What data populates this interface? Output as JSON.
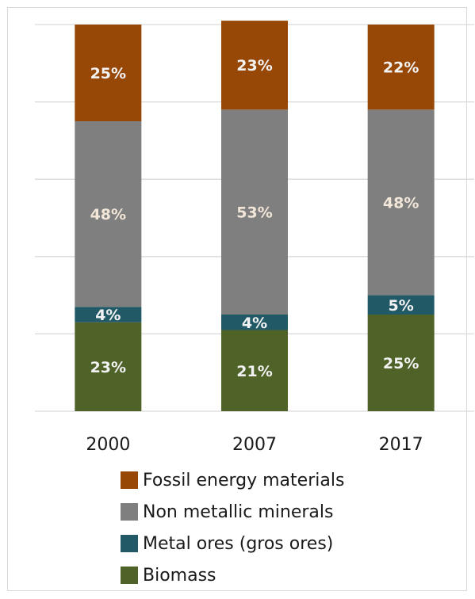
{
  "chart_data": {
    "type": "bar",
    "stacked": true,
    "percent": true,
    "categories": [
      "2000",
      "2007",
      "2017"
    ],
    "series": [
      {
        "name": "Biomass",
        "values": [
          23,
          21,
          25
        ],
        "color": "#4f6228"
      },
      {
        "name": "Metal ores (gros ores)",
        "values": [
          4,
          4,
          5
        ],
        "color": "#215967"
      },
      {
        "name": "Non metallic minerals",
        "values": [
          48,
          53,
          48
        ],
        "color": "#7f7f7f"
      },
      {
        "name": "Fossil energy materials",
        "values": [
          25,
          23,
          22
        ],
        "color": "#974706"
      }
    ],
    "title": "",
    "xlabel": "",
    "ylabel": "",
    "ylim": [
      0,
      100
    ],
    "grid": true,
    "legend_position": "bottom"
  },
  "legend": [
    {
      "label": "Fossil energy materials",
      "color": "#974706"
    },
    {
      "label": "Non metallic minerals",
      "color": "#7f7f7f"
    },
    {
      "label": "Metal ores (gros ores)",
      "color": "#215967"
    },
    {
      "label": "Biomass",
      "color": "#4f6228"
    }
  ]
}
